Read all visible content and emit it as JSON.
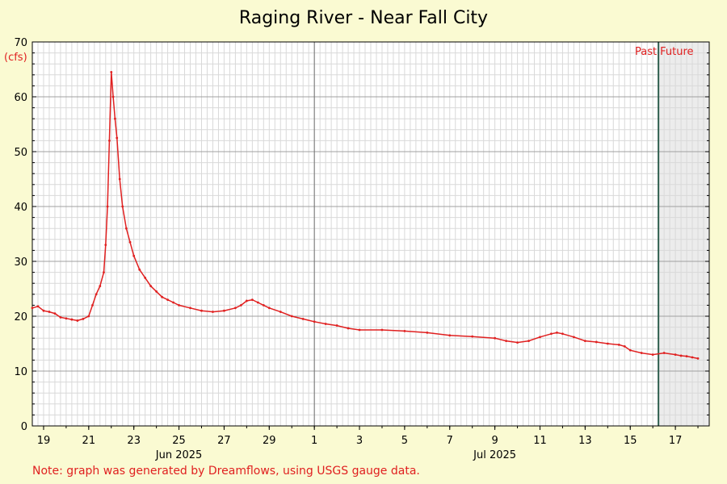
{
  "chart_data": {
    "type": "line",
    "title": "Raging River - Near Fall City",
    "unit_label": "(cfs)",
    "note": "Note: graph was generated by Dreamflows, using USGS gauge data.",
    "ylim": [
      0,
      70
    ],
    "y_ticks": [
      0,
      10,
      20,
      30,
      40,
      50,
      60,
      70
    ],
    "x_range": [
      "2025-06-18T12:00",
      "2025-07-18T12:00"
    ],
    "x_ticks": [
      {
        "date": "2025-06-19",
        "label": "19"
      },
      {
        "date": "2025-06-21",
        "label": "21"
      },
      {
        "date": "2025-06-23",
        "label": "23"
      },
      {
        "date": "2025-06-25",
        "label": "25"
      },
      {
        "date": "2025-06-27",
        "label": "27"
      },
      {
        "date": "2025-06-29",
        "label": "29"
      },
      {
        "date": "2025-07-01",
        "label": "1"
      },
      {
        "date": "2025-07-03",
        "label": "3"
      },
      {
        "date": "2025-07-05",
        "label": "5"
      },
      {
        "date": "2025-07-07",
        "label": "7"
      },
      {
        "date": "2025-07-09",
        "label": "9"
      },
      {
        "date": "2025-07-11",
        "label": "11"
      },
      {
        "date": "2025-07-13",
        "label": "13"
      },
      {
        "date": "2025-07-15",
        "label": "15"
      },
      {
        "date": "2025-07-17",
        "label": "17"
      }
    ],
    "month_labels": [
      {
        "date": "2025-06-25",
        "label": "Jun 2025"
      },
      {
        "date": "2025-07-09",
        "label": "Jul 2025"
      }
    ],
    "month_divider": "2025-07-01",
    "now": "2025-07-16T06:00",
    "past_label": "Past",
    "future_label": "Future",
    "grid": true,
    "colors": {
      "line": "#e02020",
      "background": "#fafad2",
      "plot": "#ffffff",
      "future_shade": "#ececec",
      "now_line": "#2e5e4e",
      "grid_major": "#a0a0a0",
      "grid_minor": "#d9d9d9"
    },
    "series": [
      {
        "points": [
          [
            "2025-06-18T12:00",
            21.5
          ],
          [
            "2025-06-18T18:00",
            21.8
          ],
          [
            "2025-06-19T00:00",
            21.0
          ],
          [
            "2025-06-19T06:00",
            20.8
          ],
          [
            "2025-06-19T12:00",
            20.5
          ],
          [
            "2025-06-19T18:00",
            19.8
          ],
          [
            "2025-06-20T00:00",
            19.6
          ],
          [
            "2025-06-20T06:00",
            19.4
          ],
          [
            "2025-06-20T12:00",
            19.2
          ],
          [
            "2025-06-20T18:00",
            19.5
          ],
          [
            "2025-06-21T00:00",
            20.0
          ],
          [
            "2025-06-21T04:00",
            22.0
          ],
          [
            "2025-06-21T08:00",
            24.0
          ],
          [
            "2025-06-21T12:00",
            25.5
          ],
          [
            "2025-06-21T16:00",
            28.0
          ],
          [
            "2025-06-21T18:00",
            33.0
          ],
          [
            "2025-06-21T20:00",
            40.0
          ],
          [
            "2025-06-21T22:00",
            52.0
          ],
          [
            "2025-06-22T00:00",
            64.5
          ],
          [
            "2025-06-22T02:00",
            60.0
          ],
          [
            "2025-06-22T04:00",
            56.0
          ],
          [
            "2025-06-22T06:00",
            52.5
          ],
          [
            "2025-06-22T09:00",
            45.0
          ],
          [
            "2025-06-22T12:00",
            40.0
          ],
          [
            "2025-06-22T16:00",
            36.0
          ],
          [
            "2025-06-22T20:00",
            33.5
          ],
          [
            "2025-06-23T00:00",
            31.0
          ],
          [
            "2025-06-23T06:00",
            28.5
          ],
          [
            "2025-06-23T12:00",
            27.0
          ],
          [
            "2025-06-23T18:00",
            25.5
          ],
          [
            "2025-06-24T00:00",
            24.5
          ],
          [
            "2025-06-24T06:00",
            23.5
          ],
          [
            "2025-06-24T12:00",
            23.0
          ],
          [
            "2025-06-24T18:00",
            22.5
          ],
          [
            "2025-06-25T00:00",
            22.0
          ],
          [
            "2025-06-25T12:00",
            21.5
          ],
          [
            "2025-06-26T00:00",
            21.0
          ],
          [
            "2025-06-26T12:00",
            20.8
          ],
          [
            "2025-06-27T00:00",
            21.0
          ],
          [
            "2025-06-27T12:00",
            21.5
          ],
          [
            "2025-06-27T18:00",
            22.0
          ],
          [
            "2025-06-28T00:00",
            22.8
          ],
          [
            "2025-06-28T06:00",
            23.0
          ],
          [
            "2025-06-28T12:00",
            22.5
          ],
          [
            "2025-06-28T18:00",
            22.0
          ],
          [
            "2025-06-29T00:00",
            21.5
          ],
          [
            "2025-06-29T12:00",
            20.8
          ],
          [
            "2025-06-30T00:00",
            20.0
          ],
          [
            "2025-06-30T12:00",
            19.5
          ],
          [
            "2025-07-01T00:00",
            19.0
          ],
          [
            "2025-07-01T12:00",
            18.6
          ],
          [
            "2025-07-02T00:00",
            18.3
          ],
          [
            "2025-07-02T12:00",
            17.8
          ],
          [
            "2025-07-03T00:00",
            17.5
          ],
          [
            "2025-07-04T00:00",
            17.5
          ],
          [
            "2025-07-05T00:00",
            17.3
          ],
          [
            "2025-07-06T00:00",
            17.0
          ],
          [
            "2025-07-07T00:00",
            16.5
          ],
          [
            "2025-07-08T00:00",
            16.3
          ],
          [
            "2025-07-09T00:00",
            16.0
          ],
          [
            "2025-07-09T12:00",
            15.5
          ],
          [
            "2025-07-10T00:00",
            15.2
          ],
          [
            "2025-07-10T12:00",
            15.5
          ],
          [
            "2025-07-11T00:00",
            16.2
          ],
          [
            "2025-07-11T12:00",
            16.8
          ],
          [
            "2025-07-11T18:00",
            17.0
          ],
          [
            "2025-07-12T00:00",
            16.8
          ],
          [
            "2025-07-12T12:00",
            16.2
          ],
          [
            "2025-07-13T00:00",
            15.5
          ],
          [
            "2025-07-13T12:00",
            15.3
          ],
          [
            "2025-07-14T00:00",
            15.0
          ],
          [
            "2025-07-14T12:00",
            14.8
          ],
          [
            "2025-07-14T18:00",
            14.5
          ],
          [
            "2025-07-15T00:00",
            13.8
          ],
          [
            "2025-07-15T12:00",
            13.3
          ],
          [
            "2025-07-16T00:00",
            13.0
          ],
          [
            "2025-07-16T12:00",
            13.3
          ],
          [
            "2025-07-17T00:00",
            13.0
          ],
          [
            "2025-07-17T06:00",
            12.8
          ],
          [
            "2025-07-17T12:00",
            12.7
          ],
          [
            "2025-07-17T18:00",
            12.5
          ],
          [
            "2025-07-18T00:00",
            12.3
          ]
        ]
      }
    ]
  }
}
